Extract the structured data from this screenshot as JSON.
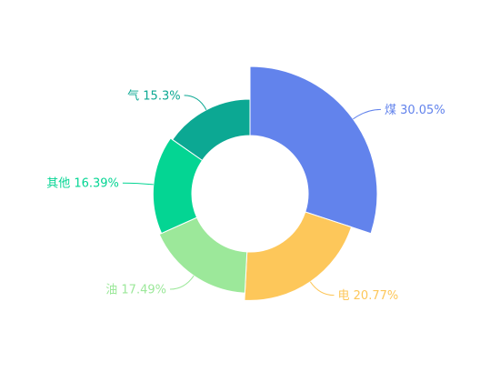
{
  "chart_data": {
    "type": "pie",
    "variant": "rose-donut",
    "legend": "none",
    "series": [
      {
        "slices": [
          {
            "name": "煤",
            "percent_label": "30.05%",
            "value": 30.05,
            "color": "#6283ec"
          },
          {
            "name": "电",
            "percent_label": "20.77%",
            "value": 20.77,
            "color": "#fdc75a"
          },
          {
            "name": "油",
            "percent_label": "17.49%",
            "value": 17.49,
            "color": "#9ce89a"
          },
          {
            "name": "其他",
            "percent_label": "16.39%",
            "value": 16.39,
            "color": "#04d593"
          },
          {
            "name": "气",
            "percent_label": "15.3%",
            "value": 15.3,
            "color": "#0ca893"
          }
        ]
      }
    ]
  }
}
